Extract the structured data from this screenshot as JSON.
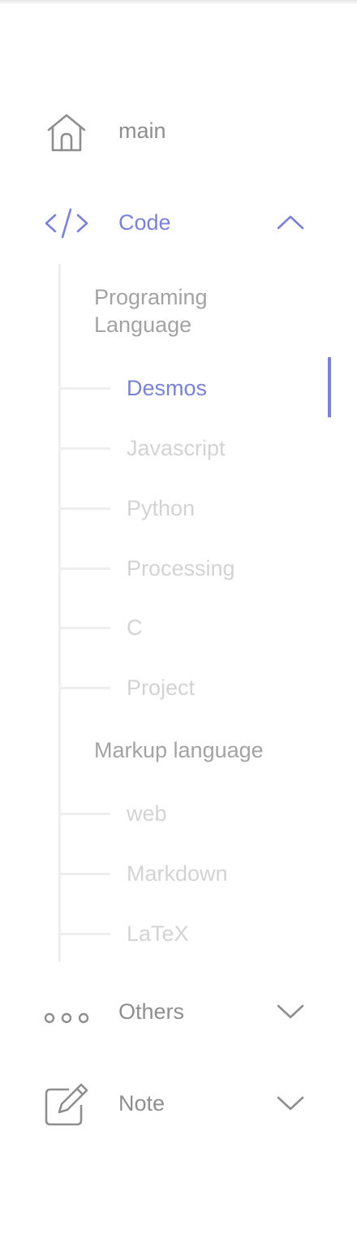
{
  "nav": {
    "main": {
      "label": "main",
      "icon": "home-icon"
    },
    "code": {
      "label": "Code",
      "icon": "code-icon",
      "expanded": true
    },
    "others": {
      "label": "Others",
      "icon": "more-dots-icon",
      "expanded": false
    },
    "note": {
      "label": "Note",
      "icon": "edit-note-icon",
      "expanded": false
    }
  },
  "code_menu": {
    "groups": [
      {
        "label": "Programing Language",
        "items": [
          "Desmos",
          "Javascript",
          "Python",
          "Processing",
          "C",
          "Project"
        ]
      },
      {
        "label": "Markup language",
        "items": [
          "web",
          "Markdown",
          "LaTeX"
        ]
      }
    ],
    "active_item": "Desmos"
  },
  "colors": {
    "accent": "#7a82d6",
    "text_default": "#8e8e8e",
    "group_label": "#a3a3a3",
    "sub_item": "#d3d3d3",
    "tree_line": "#eeeeee"
  }
}
